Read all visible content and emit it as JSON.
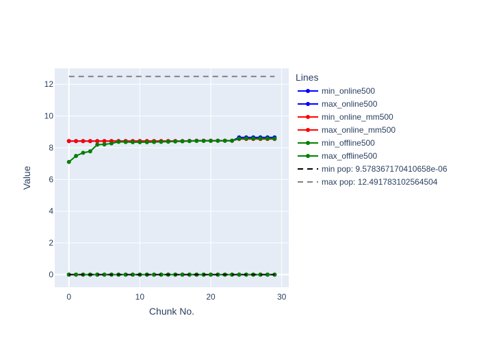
{
  "chart_data": {
    "type": "line",
    "xlabel": "Chunk No.",
    "ylabel": "Value",
    "xlim": [
      -2,
      31
    ],
    "ylim": [
      -0.8,
      13.0
    ],
    "xticks": [
      0,
      10,
      20,
      30
    ],
    "yticks": [
      0,
      2,
      4,
      6,
      8,
      10,
      12
    ],
    "grid": true,
    "legend": {
      "title": "Lines",
      "placement": "right"
    },
    "x": [
      0,
      1,
      2,
      3,
      4,
      5,
      6,
      7,
      8,
      9,
      10,
      11,
      12,
      13,
      14,
      15,
      16,
      17,
      18,
      19,
      20,
      21,
      22,
      23,
      24,
      25,
      26,
      27,
      28,
      29
    ],
    "series": [
      {
        "name": "min_online500",
        "color": "#0000ff",
        "mode": "lines+markers",
        "dash": "solid",
        "values": [
          0,
          0,
          0,
          0,
          0,
          0,
          0,
          0,
          0,
          0,
          0,
          0,
          0,
          0,
          0,
          0,
          0,
          0,
          0,
          0,
          0,
          0,
          0,
          0,
          0,
          0,
          0,
          0,
          0,
          0
        ]
      },
      {
        "name": "max_online500",
        "color": "#0000ff",
        "mode": "lines+markers",
        "dash": "solid",
        "values": [
          8.42,
          8.42,
          8.42,
          8.42,
          8.42,
          8.42,
          8.42,
          8.42,
          8.42,
          8.42,
          8.42,
          8.42,
          8.42,
          8.42,
          8.42,
          8.42,
          8.42,
          8.43,
          8.44,
          8.44,
          8.44,
          8.44,
          8.44,
          8.44,
          8.65,
          8.65,
          8.65,
          8.65,
          8.65,
          8.65
        ]
      },
      {
        "name": "min_online_mm500",
        "color": "#ff0000",
        "mode": "lines+markers",
        "dash": "solid",
        "values": [
          0,
          0,
          0,
          0,
          0,
          0,
          0,
          0,
          0,
          0,
          0,
          0,
          0,
          0,
          0,
          0,
          0,
          0,
          0,
          0,
          0,
          0,
          0,
          0,
          0,
          0,
          0,
          0,
          0,
          0
        ]
      },
      {
        "name": "max_online_mm500",
        "color": "#ff0000",
        "mode": "lines+markers",
        "dash": "solid",
        "values": [
          8.42,
          8.42,
          8.42,
          8.42,
          8.42,
          8.42,
          8.42,
          8.42,
          8.42,
          8.42,
          8.42,
          8.42,
          8.42,
          8.42,
          8.42,
          8.42,
          8.42,
          8.43,
          8.44,
          8.44,
          8.44,
          8.44,
          8.44,
          8.44,
          8.55,
          8.55,
          8.55,
          8.55,
          8.55,
          8.55
        ]
      },
      {
        "name": "min_offline500",
        "color": "#008000",
        "mode": "lines+markers",
        "dash": "solid",
        "values": [
          0,
          0,
          0,
          0,
          0,
          0,
          0,
          0,
          0,
          0,
          0,
          0,
          0,
          0,
          0,
          0,
          0,
          0,
          0,
          0,
          0,
          0,
          0,
          0,
          0,
          0,
          0,
          0,
          0,
          0
        ]
      },
      {
        "name": "max_offline500",
        "color": "#008000",
        "mode": "lines+markers",
        "dash": "solid",
        "values": [
          7.1,
          7.48,
          7.68,
          7.77,
          8.19,
          8.21,
          8.27,
          8.37,
          8.36,
          8.35,
          8.35,
          8.35,
          8.36,
          8.37,
          8.38,
          8.39,
          8.4,
          8.42,
          8.43,
          8.43,
          8.43,
          8.44,
          8.44,
          8.44,
          8.57,
          8.58,
          8.58,
          8.58,
          8.58,
          8.57
        ]
      },
      {
        "name": "min pop: 9.578367170410658e-06",
        "color": "#000000",
        "mode": "lines",
        "dash": "dash",
        "values": [
          9.5784e-06,
          9.5784e-06,
          9.5784e-06,
          9.5784e-06,
          9.5784e-06,
          9.5784e-06,
          9.5784e-06,
          9.5784e-06,
          9.5784e-06,
          9.5784e-06,
          9.5784e-06,
          9.5784e-06,
          9.5784e-06,
          9.5784e-06,
          9.5784e-06,
          9.5784e-06,
          9.5784e-06,
          9.5784e-06,
          9.5784e-06,
          9.5784e-06,
          9.5784e-06,
          9.5784e-06,
          9.5784e-06,
          9.5784e-06,
          9.5784e-06,
          9.5784e-06,
          9.5784e-06,
          9.5784e-06,
          9.5784e-06,
          9.5784e-06
        ]
      },
      {
        "name": "max pop: 12.491783102564504",
        "color": "#808080",
        "mode": "lines",
        "dash": "dash",
        "values": [
          12.4918,
          12.4918,
          12.4918,
          12.4918,
          12.4918,
          12.4918,
          12.4918,
          12.4918,
          12.4918,
          12.4918,
          12.4918,
          12.4918,
          12.4918,
          12.4918,
          12.4918,
          12.4918,
          12.4918,
          12.4918,
          12.4918,
          12.4918,
          12.4918,
          12.4918,
          12.4918,
          12.4918,
          12.4918,
          12.4918,
          12.4918,
          12.4918,
          12.4918,
          12.4918
        ]
      }
    ]
  }
}
